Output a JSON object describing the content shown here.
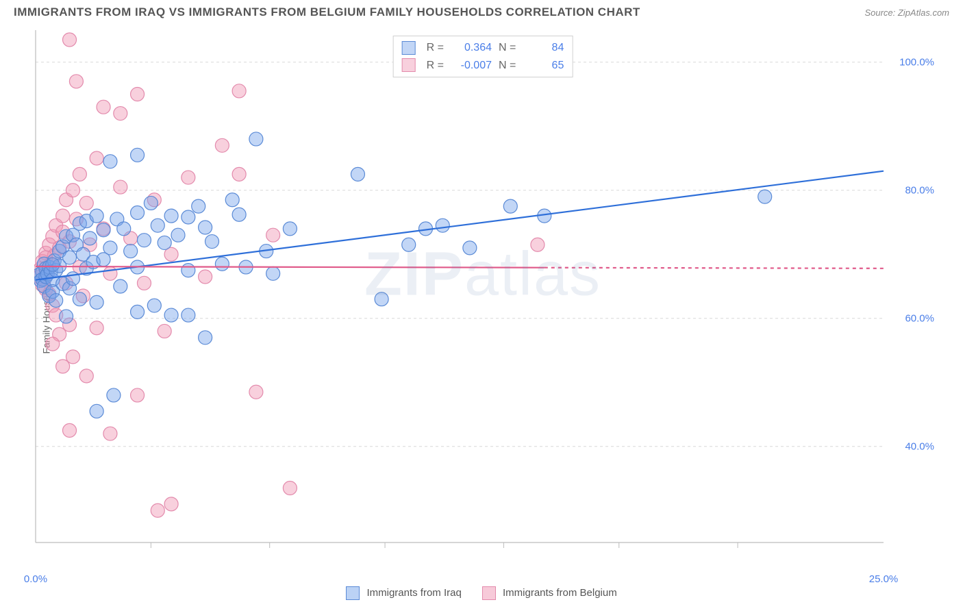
{
  "header": {
    "title": "IMMIGRANTS FROM IRAQ VS IMMIGRANTS FROM BELGIUM FAMILY HOUSEHOLDS CORRELATION CHART",
    "source": "Source: ZipAtlas.com"
  },
  "watermark": {
    "zip": "ZIP",
    "atlas": "atlas"
  },
  "chart": {
    "type": "scatter",
    "ylabel": "Family Households",
    "xlim": [
      0,
      25
    ],
    "ylim": [
      25,
      105
    ],
    "xtick_values": [
      0,
      25
    ],
    "xtick_labels": [
      "0.0%",
      "25.0%"
    ],
    "xtick_minor": [
      3.4,
      6.9,
      10.3,
      13.8,
      17.2,
      20.7
    ],
    "ytick_values": [
      40,
      60,
      80,
      100
    ],
    "ytick_labels": [
      "40.0%",
      "60.0%",
      "80.0%",
      "100.0%"
    ],
    "background_color": "#ffffff",
    "grid_color": "#d8d8d8",
    "axis_color": "#bcbcbc",
    "marker_radius": 10,
    "marker_stroke_width": 1.2,
    "line_width": 2.2,
    "series": [
      {
        "name": "Immigrants from Iraq",
        "fill": "rgba(120,165,235,0.45)",
        "stroke": "#5a8ad6",
        "line_color": "#2e6fd9",
        "r": 0.364,
        "n": 84,
        "trend": {
          "x1": 0,
          "y1": 66,
          "x2": 25,
          "y2": 83,
          "solid_until_x": 25
        },
        "points": [
          [
            0.1,
            66.8
          ],
          [
            0.15,
            65.9
          ],
          [
            0.2,
            67.2
          ],
          [
            0.2,
            66.1
          ],
          [
            0.25,
            68.5
          ],
          [
            0.25,
            65.0
          ],
          [
            0.3,
            67.8
          ],
          [
            0.3,
            66.5
          ],
          [
            0.35,
            66.9
          ],
          [
            0.4,
            68.0
          ],
          [
            0.4,
            63.5
          ],
          [
            0.45,
            67.3
          ],
          [
            0.5,
            66.0
          ],
          [
            0.5,
            64.2
          ],
          [
            0.55,
            69.0
          ],
          [
            0.6,
            67.5
          ],
          [
            0.6,
            62.8
          ],
          [
            0.7,
            68.2
          ],
          [
            0.7,
            70.5
          ],
          [
            0.8,
            65.4
          ],
          [
            0.8,
            71.2
          ],
          [
            0.9,
            72.8
          ],
          [
            0.9,
            60.3
          ],
          [
            1.0,
            69.5
          ],
          [
            1.0,
            64.7
          ],
          [
            1.1,
            73.0
          ],
          [
            1.1,
            66.2
          ],
          [
            1.2,
            71.5
          ],
          [
            1.3,
            74.8
          ],
          [
            1.3,
            63.0
          ],
          [
            1.4,
            70.0
          ],
          [
            1.5,
            75.2
          ],
          [
            1.5,
            67.8
          ],
          [
            1.6,
            72.5
          ],
          [
            1.7,
            68.8
          ],
          [
            1.8,
            76.0
          ],
          [
            1.8,
            62.5
          ],
          [
            2.0,
            73.8
          ],
          [
            2.0,
            69.2
          ],
          [
            2.2,
            84.5
          ],
          [
            2.2,
            71.0
          ],
          [
            2.4,
            75.5
          ],
          [
            2.5,
            65.0
          ],
          [
            2.6,
            74.0
          ],
          [
            2.8,
            70.5
          ],
          [
            3.0,
            76.5
          ],
          [
            3.0,
            68.0
          ],
          [
            3.0,
            85.5
          ],
          [
            3.2,
            72.2
          ],
          [
            3.4,
            78.0
          ],
          [
            3.5,
            62.0
          ],
          [
            3.6,
            74.5
          ],
          [
            3.8,
            71.8
          ],
          [
            4.0,
            76.0
          ],
          [
            4.0,
            60.5
          ],
          [
            4.2,
            73.0
          ],
          [
            4.5,
            75.8
          ],
          [
            4.5,
            67.5
          ],
          [
            4.8,
            77.5
          ],
          [
            5.0,
            74.2
          ],
          [
            5.0,
            57.0
          ],
          [
            5.2,
            72.0
          ],
          [
            5.5,
            68.5
          ],
          [
            5.8,
            78.5
          ],
          [
            6.0,
            76.2
          ],
          [
            6.2,
            68.0
          ],
          [
            6.5,
            88.0
          ],
          [
            6.8,
            70.5
          ],
          [
            7.0,
            67.0
          ],
          [
            7.5,
            74.0
          ],
          [
            1.8,
            45.5
          ],
          [
            2.3,
            48.0
          ],
          [
            4.5,
            60.5
          ],
          [
            3.0,
            61.0
          ],
          [
            9.5,
            82.5
          ],
          [
            10.2,
            63.0
          ],
          [
            11.0,
            71.5
          ],
          [
            11.5,
            74.0
          ],
          [
            12.0,
            74.5
          ],
          [
            12.8,
            71.0
          ],
          [
            14.0,
            77.5
          ],
          [
            15.0,
            76.0
          ],
          [
            21.5,
            79.0
          ],
          [
            0.5,
            68.4
          ]
        ]
      },
      {
        "name": "Immigrants from Belgium",
        "fill": "rgba(240,150,180,0.45)",
        "stroke": "#e38aac",
        "line_color": "#e05a8a",
        "r": -0.007,
        "n": 65,
        "trend": {
          "x1": 0,
          "y1": 68.1,
          "x2": 25,
          "y2": 67.8,
          "solid_until_x": 15
        },
        "points": [
          [
            0.1,
            66.5
          ],
          [
            0.15,
            67.8
          ],
          [
            0.2,
            65.2
          ],
          [
            0.2,
            68.9
          ],
          [
            0.25,
            66.0
          ],
          [
            0.3,
            70.2
          ],
          [
            0.3,
            64.5
          ],
          [
            0.35,
            67.2
          ],
          [
            0.4,
            71.5
          ],
          [
            0.4,
            63.8
          ],
          [
            0.45,
            68.5
          ],
          [
            0.5,
            72.8
          ],
          [
            0.5,
            62.0
          ],
          [
            0.55,
            69.8
          ],
          [
            0.6,
            74.5
          ],
          [
            0.6,
            60.5
          ],
          [
            0.7,
            71.0
          ],
          [
            0.7,
            57.5
          ],
          [
            0.8,
            73.5
          ],
          [
            0.8,
            76.0
          ],
          [
            0.9,
            65.5
          ],
          [
            0.9,
            78.5
          ],
          [
            1.0,
            59.0
          ],
          [
            1.0,
            72.0
          ],
          [
            1.1,
            80.0
          ],
          [
            1.1,
            54.0
          ],
          [
            1.2,
            75.5
          ],
          [
            1.3,
            68.0
          ],
          [
            1.3,
            82.5
          ],
          [
            1.4,
            63.5
          ],
          [
            1.5,
            78.0
          ],
          [
            1.5,
            51.0
          ],
          [
            1.6,
            71.5
          ],
          [
            1.8,
            85.0
          ],
          [
            1.8,
            58.5
          ],
          [
            2.0,
            74.0
          ],
          [
            2.0,
            93.0
          ],
          [
            2.2,
            67.0
          ],
          [
            2.5,
            80.5
          ],
          [
            2.5,
            92.0
          ],
          [
            2.8,
            72.5
          ],
          [
            3.0,
            95.0
          ],
          [
            3.2,
            65.5
          ],
          [
            3.5,
            78.5
          ],
          [
            3.8,
            58.0
          ],
          [
            4.0,
            70.0
          ],
          [
            4.5,
            82.0
          ],
          [
            5.0,
            66.5
          ],
          [
            5.5,
            87.0
          ],
          [
            6.0,
            95.5
          ],
          [
            6.0,
            82.5
          ],
          [
            6.5,
            48.5
          ],
          [
            7.0,
            73.0
          ],
          [
            7.5,
            33.5
          ],
          [
            1.0,
            103.5
          ],
          [
            1.2,
            97.0
          ],
          [
            1.0,
            42.5
          ],
          [
            3.6,
            30.0
          ],
          [
            4.0,
            31.0
          ],
          [
            3.0,
            48.0
          ],
          [
            2.2,
            42.0
          ],
          [
            0.8,
            52.5
          ],
          [
            0.5,
            56.0
          ],
          [
            14.8,
            71.5
          ],
          [
            0.3,
            69.5
          ]
        ]
      }
    ]
  },
  "bottom_legend": {
    "items": [
      {
        "label": "Immigrants from Iraq",
        "fill": "rgba(120,165,235,0.5)",
        "stroke": "#5a8ad6"
      },
      {
        "label": "Immigrants from Belgium",
        "fill": "rgba(240,150,180,0.5)",
        "stroke": "#e38aac"
      }
    ]
  }
}
